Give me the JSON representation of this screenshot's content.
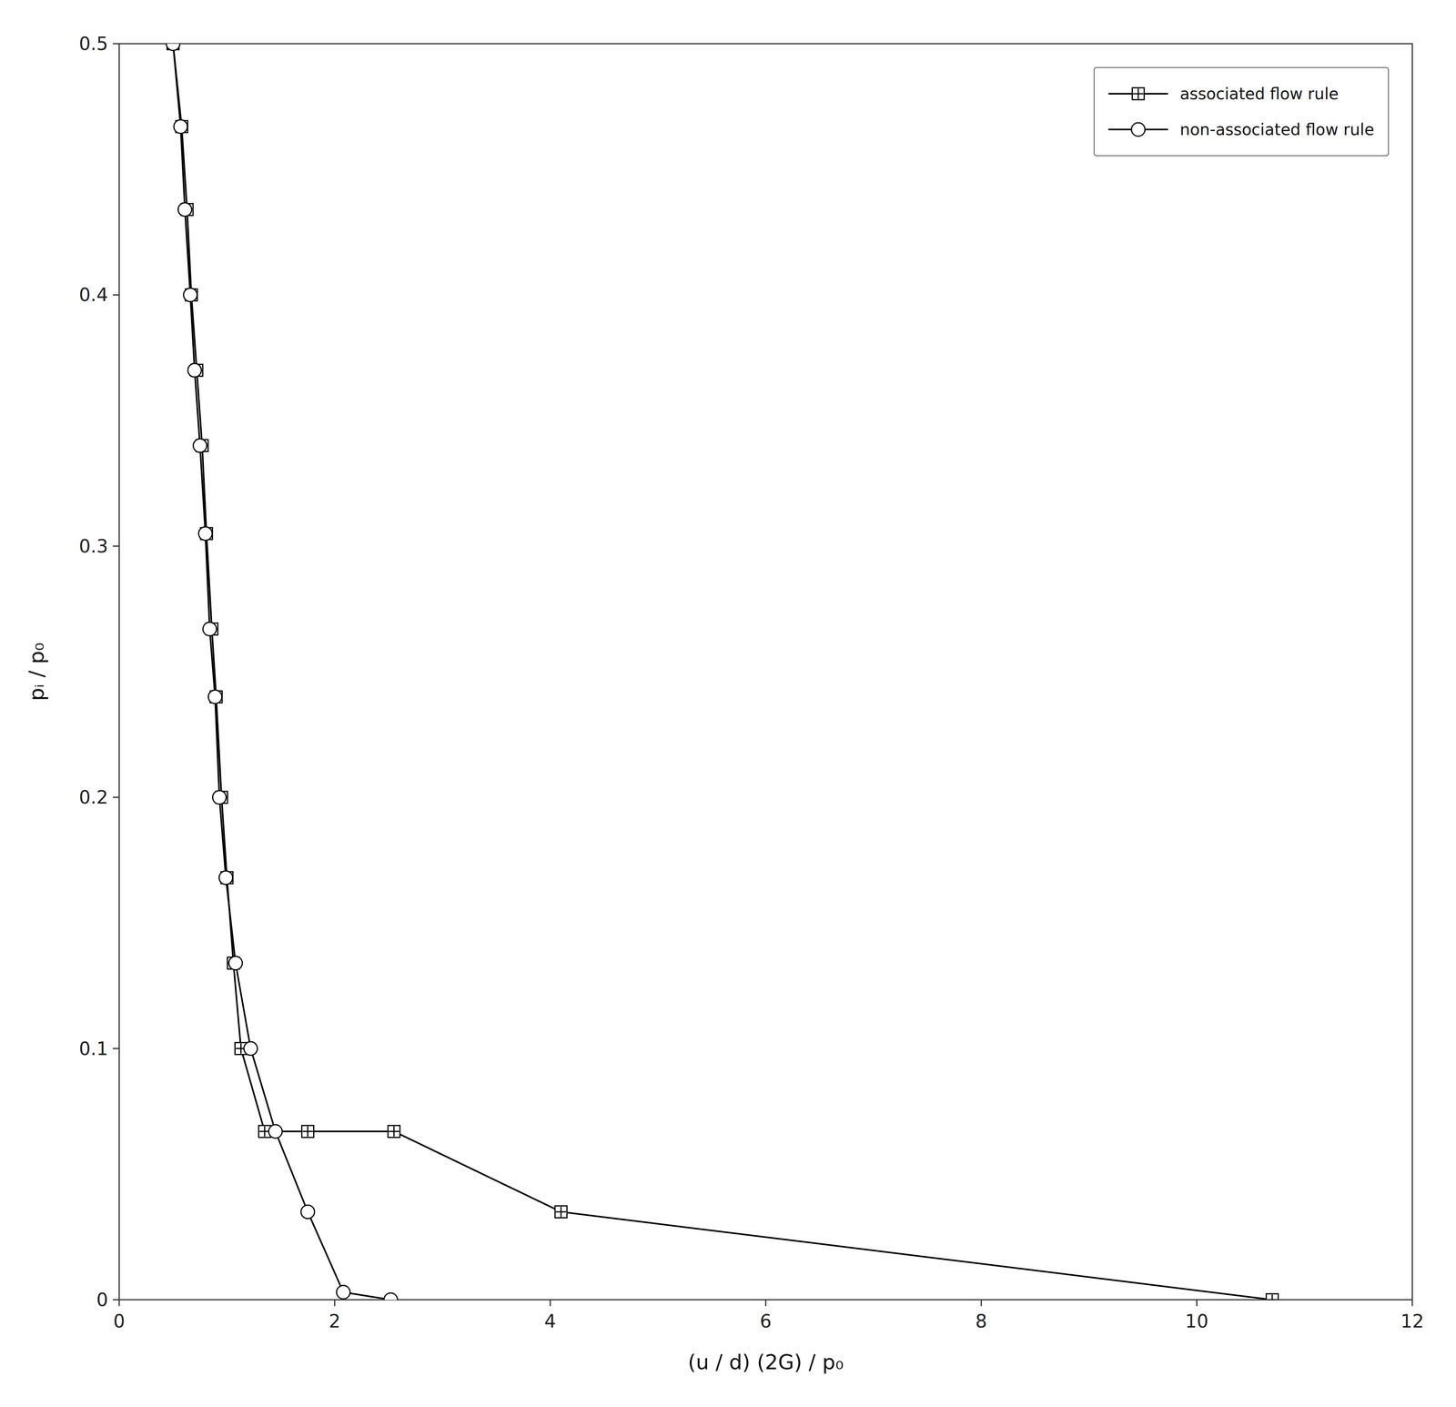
{
  "chart_data": {
    "type": "line",
    "xlabel": "(u / d) (2G) / p₀",
    "ylabel": "pᵢ / p₀",
    "xlim": [
      0,
      12
    ],
    "ylim": [
      0,
      0.5
    ],
    "xticks": [
      0,
      2,
      4,
      6,
      8,
      10,
      12
    ],
    "yticks": [
      0,
      0.1,
      0.2,
      0.3,
      0.4,
      0.5
    ],
    "grid": false,
    "legend": "upper right",
    "series": [
      {
        "name": "associated flow rule",
        "color": "#000000",
        "marker": "plus-square",
        "line_style": "solid",
        "x": [
          0.5,
          0.58,
          0.63,
          0.67,
          0.72,
          0.77,
          0.81,
          0.86,
          0.9,
          0.95,
          1.0,
          1.06,
          1.13,
          1.35,
          1.75,
          2.55,
          4.1,
          10.7
        ],
        "values": [
          0.5,
          0.467,
          0.434,
          0.4,
          0.37,
          0.34,
          0.305,
          0.267,
          0.24,
          0.2,
          0.168,
          0.134,
          0.1,
          0.067,
          0.067,
          0.067,
          0.035,
          0.0
        ]
      },
      {
        "name": "non-associated flow rule",
        "color": "#000000",
        "marker": "circle",
        "line_style": "solid",
        "x": [
          0.5,
          0.57,
          0.61,
          0.66,
          0.7,
          0.75,
          0.8,
          0.84,
          0.89,
          0.93,
          0.99,
          1.08,
          1.22,
          1.45,
          1.75,
          2.08,
          2.52
        ],
        "values": [
          0.5,
          0.467,
          0.434,
          0.4,
          0.37,
          0.34,
          0.305,
          0.267,
          0.24,
          0.2,
          0.168,
          0.134,
          0.1,
          0.067,
          0.035,
          0.003,
          0.0
        ]
      }
    ]
  }
}
